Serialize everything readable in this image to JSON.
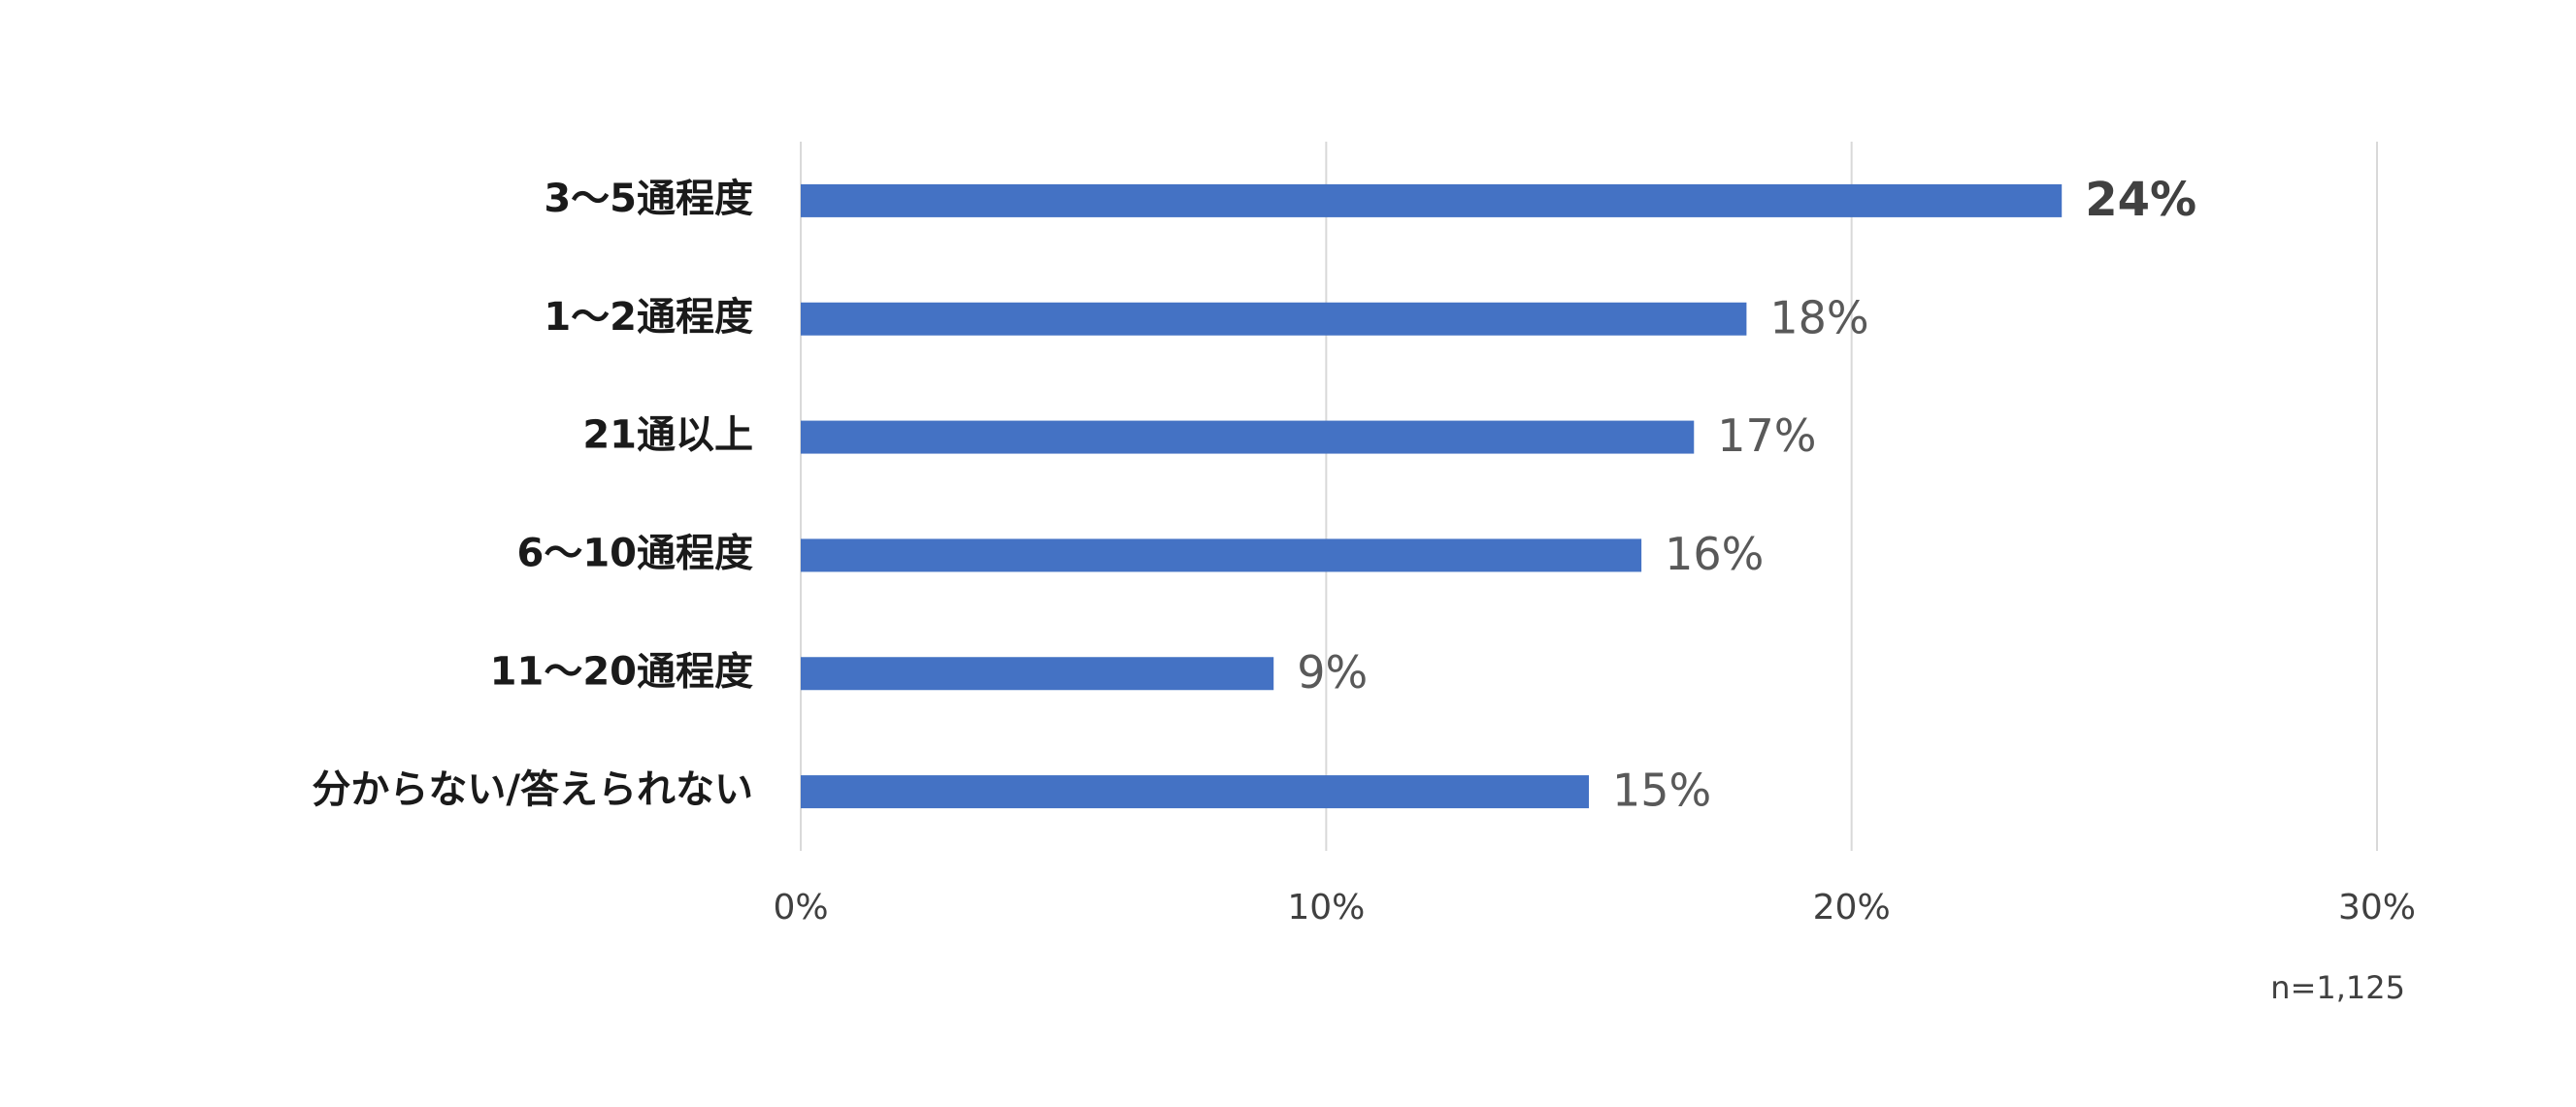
{
  "chart_data": {
    "type": "barh",
    "categories": [
      "3〜5通程度",
      "1〜2通程度",
      "21通以上",
      "6〜10通程度",
      "11〜20通程度",
      "分からない/答えられない"
    ],
    "values": [
      24,
      18,
      17,
      16,
      9,
      15
    ],
    "value_labels": [
      "24%",
      "18%",
      "17%",
      "16%",
      "9%",
      "15%"
    ],
    "color": "#4472c4",
    "xlim": [
      0,
      30
    ],
    "xticks": [
      {
        "value": 0,
        "label": "0%"
      },
      {
        "value": 10,
        "label": "10%"
      },
      {
        "value": 20,
        "label": "20%"
      },
      {
        "value": 30,
        "label": "30%"
      }
    ],
    "grid": true,
    "note": "n=1,125"
  }
}
